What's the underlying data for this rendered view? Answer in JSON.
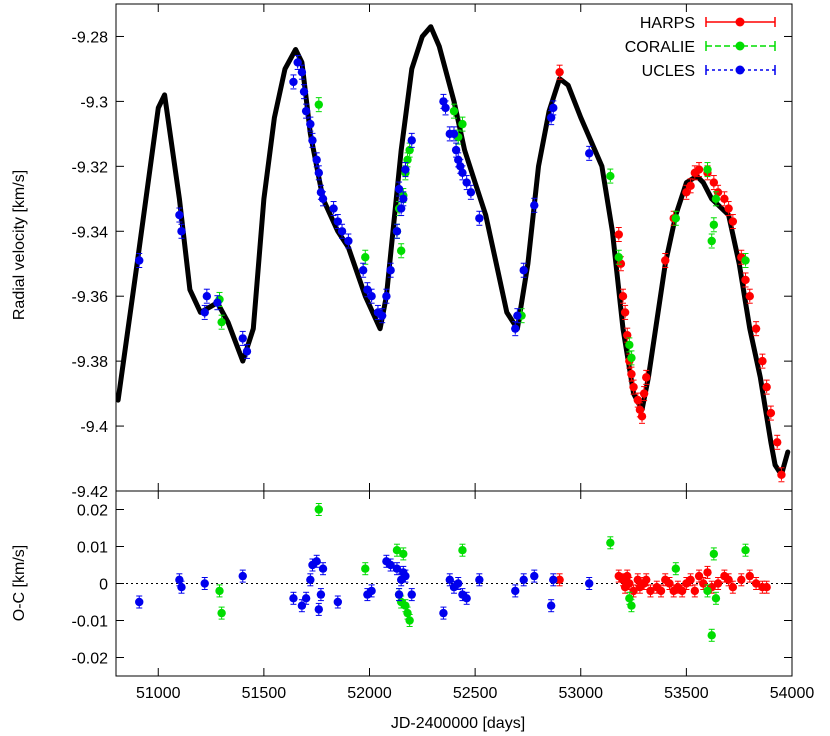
{
  "chart_data": [
    {
      "type": "scatter",
      "panel": "top",
      "xlabel": "JD-2400000 [days]",
      "ylabel": "Radial velocity [km/s]",
      "xlim": [
        50800,
        54000
      ],
      "ylim": [
        -9.42,
        -9.27
      ],
      "x_ticks": [
        51000,
        51500,
        52000,
        52500,
        53000,
        53500,
        54000
      ],
      "x_tick_labels": [
        "51000",
        "51500",
        "52000",
        "52500",
        "53000",
        "53500",
        "54000"
      ],
      "y_ticks": [
        -9.42,
        -9.4,
        -9.38,
        -9.36,
        -9.34,
        -9.32,
        -9.3,
        -9.28
      ],
      "y_tick_labels": [
        "-9.42",
        "-9.4",
        "-9.38",
        "-9.36",
        "-9.34",
        "-9.32",
        "-9.3",
        "-9.28"
      ],
      "model_curve": {
        "name": "Orbital fit",
        "color": "#000000",
        "x": [
          50810,
          50900,
          51000,
          51030,
          51100,
          51150,
          51200,
          51280,
          51330,
          51400,
          51450,
          51500,
          51550,
          51600,
          51650,
          51680,
          51720,
          51780,
          51850,
          51900,
          51980,
          52050,
          52080,
          52150,
          52200,
          52250,
          52290,
          52330,
          52400,
          52450,
          52500,
          52550,
          52600,
          52650,
          52700,
          52750,
          52800,
          52850,
          52900,
          52940,
          53000,
          53100,
          53150,
          53200,
          53250,
          53290,
          53320,
          53400,
          53450,
          53500,
          53550,
          53580,
          53620,
          53700,
          53750,
          53800,
          53850,
          53900,
          53920,
          53950,
          53980
        ],
        "y": [
          -9.392,
          -9.35,
          -9.302,
          -9.298,
          -9.33,
          -9.358,
          -9.365,
          -9.362,
          -9.368,
          -9.38,
          -9.37,
          -9.33,
          -9.305,
          -9.29,
          -9.284,
          -9.288,
          -9.31,
          -9.33,
          -9.34,
          -9.345,
          -9.36,
          -9.37,
          -9.36,
          -9.315,
          -9.29,
          -9.28,
          -9.277,
          -9.283,
          -9.3,
          -9.315,
          -9.325,
          -9.335,
          -9.35,
          -9.365,
          -9.37,
          -9.35,
          -9.32,
          -9.303,
          -9.293,
          -9.295,
          -9.305,
          -9.32,
          -9.34,
          -9.37,
          -9.39,
          -9.395,
          -9.385,
          -9.35,
          -9.335,
          -9.325,
          -9.323,
          -9.325,
          -9.33,
          -9.335,
          -9.35,
          -9.37,
          -9.385,
          -9.405,
          -9.412,
          -9.415,
          -9.408
        ]
      },
      "series": [
        {
          "name": "HARPS",
          "color": "#ff0000",
          "x": [
            52900,
            53180,
            53190,
            53200,
            53210,
            53220,
            53230,
            53240,
            53250,
            53270,
            53280,
            53290,
            53300,
            53310,
            53400,
            53440,
            53500,
            53520,
            53540,
            53560,
            53600,
            53630,
            53650,
            53680,
            53700,
            53720,
            53760,
            53780,
            53800,
            53830,
            53860,
            53880,
            53900,
            53930,
            53950
          ],
          "y": [
            -9.291,
            -9.341,
            -9.35,
            -9.36,
            -9.365,
            -9.372,
            -9.38,
            -9.384,
            -9.388,
            -9.392,
            -9.395,
            -9.397,
            -9.39,
            -9.385,
            -9.349,
            -9.336,
            -9.328,
            -9.326,
            -9.322,
            -9.321,
            -9.322,
            -9.325,
            -9.328,
            -9.33,
            -9.333,
            -9.337,
            -9.348,
            -9.355,
            -9.36,
            -9.37,
            -9.38,
            -9.388,
            -9.396,
            -9.405,
            -9.415
          ]
        },
        {
          "name": "CORALIE",
          "color": "#00dd00",
          "x": [
            51290,
            51300,
            51760,
            51980,
            52130,
            52140,
            52150,
            52160,
            52170,
            52180,
            52190,
            52400,
            52420,
            52440,
            52720,
            53140,
            53180,
            53230,
            53240,
            53450,
            53600,
            53620,
            53630,
            53640,
            53780
          ],
          "y": [
            -9.361,
            -9.368,
            -9.301,
            -9.348,
            -9.34,
            -9.333,
            -9.346,
            -9.329,
            -9.322,
            -9.318,
            -9.315,
            -9.303,
            -9.311,
            -9.307,
            -9.366,
            -9.323,
            -9.348,
            -9.375,
            -9.379,
            -9.336,
            -9.321,
            -9.343,
            -9.338,
            -9.33,
            -9.349
          ]
        },
        {
          "name": "UCLES",
          "color": "#0000ee",
          "x": [
            50910,
            51100,
            51110,
            51220,
            51230,
            51280,
            51400,
            51420,
            51640,
            51660,
            51680,
            51690,
            51700,
            51720,
            51730,
            51750,
            51760,
            51770,
            51780,
            51830,
            51850,
            51870,
            51900,
            51970,
            51990,
            52010,
            52040,
            52060,
            52080,
            52100,
            52130,
            52140,
            52150,
            52160,
            52170,
            52200,
            52350,
            52360,
            52380,
            52400,
            52410,
            52420,
            52430,
            52440,
            52460,
            52480,
            52520,
            52690,
            52700,
            52730,
            52780,
            52860,
            52870,
            53040
          ],
          "y": [
            -9.349,
            -9.335,
            -9.34,
            -9.365,
            -9.36,
            -9.362,
            -9.373,
            -9.377,
            -9.294,
            -9.288,
            -9.291,
            -9.297,
            -9.303,
            -9.307,
            -9.312,
            -9.318,
            -9.322,
            -9.328,
            -9.33,
            -9.333,
            -9.337,
            -9.34,
            -9.343,
            -9.352,
            -9.358,
            -9.36,
            -9.365,
            -9.366,
            -9.36,
            -9.352,
            -9.34,
            -9.327,
            -9.333,
            -9.33,
            -9.321,
            -9.312,
            -9.3,
            -9.302,
            -9.31,
            -9.31,
            -9.315,
            -9.318,
            -9.32,
            -9.322,
            -9.325,
            -9.328,
            -9.336,
            -9.37,
            -9.366,
            -9.352,
            -9.332,
            -9.305,
            -9.302,
            -9.316
          ]
        }
      ],
      "legend": {
        "position": "top-right",
        "entries": [
          "HARPS",
          "CORALIE",
          "UCLES"
        ]
      }
    },
    {
      "type": "scatter",
      "panel": "bottom",
      "xlabel": "JD-2400000 [days]",
      "ylabel": "O-C [km/s]",
      "xlim": [
        50800,
        54000
      ],
      "ylim": [
        -0.025,
        0.025
      ],
      "y_ticks": [
        -0.02,
        -0.01,
        0,
        0.01,
        0.02
      ],
      "y_tick_labels": [
        "-0.02",
        "-0.01",
        "0",
        "0.01",
        "0.02"
      ],
      "zero_line": 0,
      "series": [
        {
          "name": "HARPS",
          "color": "#ff0000",
          "x": [
            52900,
            53180,
            53200,
            53210,
            53220,
            53230,
            53250,
            53270,
            53280,
            53300,
            53310,
            53330,
            53360,
            53380,
            53400,
            53420,
            53440,
            53460,
            53480,
            53500,
            53520,
            53540,
            53560,
            53580,
            53600,
            53620,
            53650,
            53680,
            53700,
            53720,
            53760,
            53800,
            53830,
            53860,
            53880
          ],
          "y": [
            0.001,
            0.002,
            0.001,
            -0.001,
            0.002,
            0.0,
            -0.002,
            0.001,
            -0.001,
            0.0,
            0.001,
            -0.002,
            -0.001,
            -0.002,
            0.001,
            0.0,
            -0.002,
            -0.001,
            -0.002,
            0.0,
            0.001,
            -0.002,
            0.002,
            0.0,
            0.003,
            -0.001,
            0.0,
            0.002,
            0.001,
            -0.001,
            0.001,
            0.002,
            0.0,
            -0.001,
            -0.001
          ]
        },
        {
          "name": "CORALIE",
          "color": "#00dd00",
          "x": [
            51290,
            51300,
            51760,
            51980,
            52130,
            52140,
            52150,
            52160,
            52170,
            52180,
            52190,
            52440,
            53140,
            53230,
            53240,
            53450,
            53600,
            53620,
            53630,
            53640,
            53780
          ],
          "y": [
            -0.002,
            -0.008,
            0.02,
            0.004,
            0.009,
            -0.003,
            -0.005,
            0.008,
            -0.006,
            -0.008,
            -0.01,
            0.009,
            0.011,
            -0.004,
            -0.006,
            0.004,
            -0.002,
            -0.014,
            0.008,
            -0.004,
            0.009
          ]
        },
        {
          "name": "UCLES",
          "color": "#0000ee",
          "x": [
            50910,
            51100,
            51110,
            51220,
            51400,
            51640,
            51680,
            51700,
            51720,
            51730,
            51750,
            51760,
            51770,
            51780,
            51850,
            51990,
            52010,
            52080,
            52100,
            52130,
            52140,
            52150,
            52160,
            52170,
            52200,
            52350,
            52380,
            52400,
            52420,
            52440,
            52460,
            52520,
            52690,
            52730,
            52780,
            52860,
            52870,
            53040
          ],
          "y": [
            -0.005,
            0.001,
            -0.001,
            0.0,
            0.002,
            -0.004,
            -0.006,
            -0.004,
            0.001,
            0.005,
            0.006,
            -0.007,
            -0.003,
            0.004,
            -0.005,
            -0.003,
            -0.002,
            0.006,
            0.005,
            0.004,
            -0.003,
            0.001,
            0.003,
            0.002,
            -0.003,
            -0.008,
            0.001,
            -0.001,
            0.0,
            -0.003,
            -0.004,
            0.001,
            -0.002,
            0.001,
            0.002,
            -0.006,
            0.001,
            0.0
          ]
        }
      ]
    }
  ]
}
